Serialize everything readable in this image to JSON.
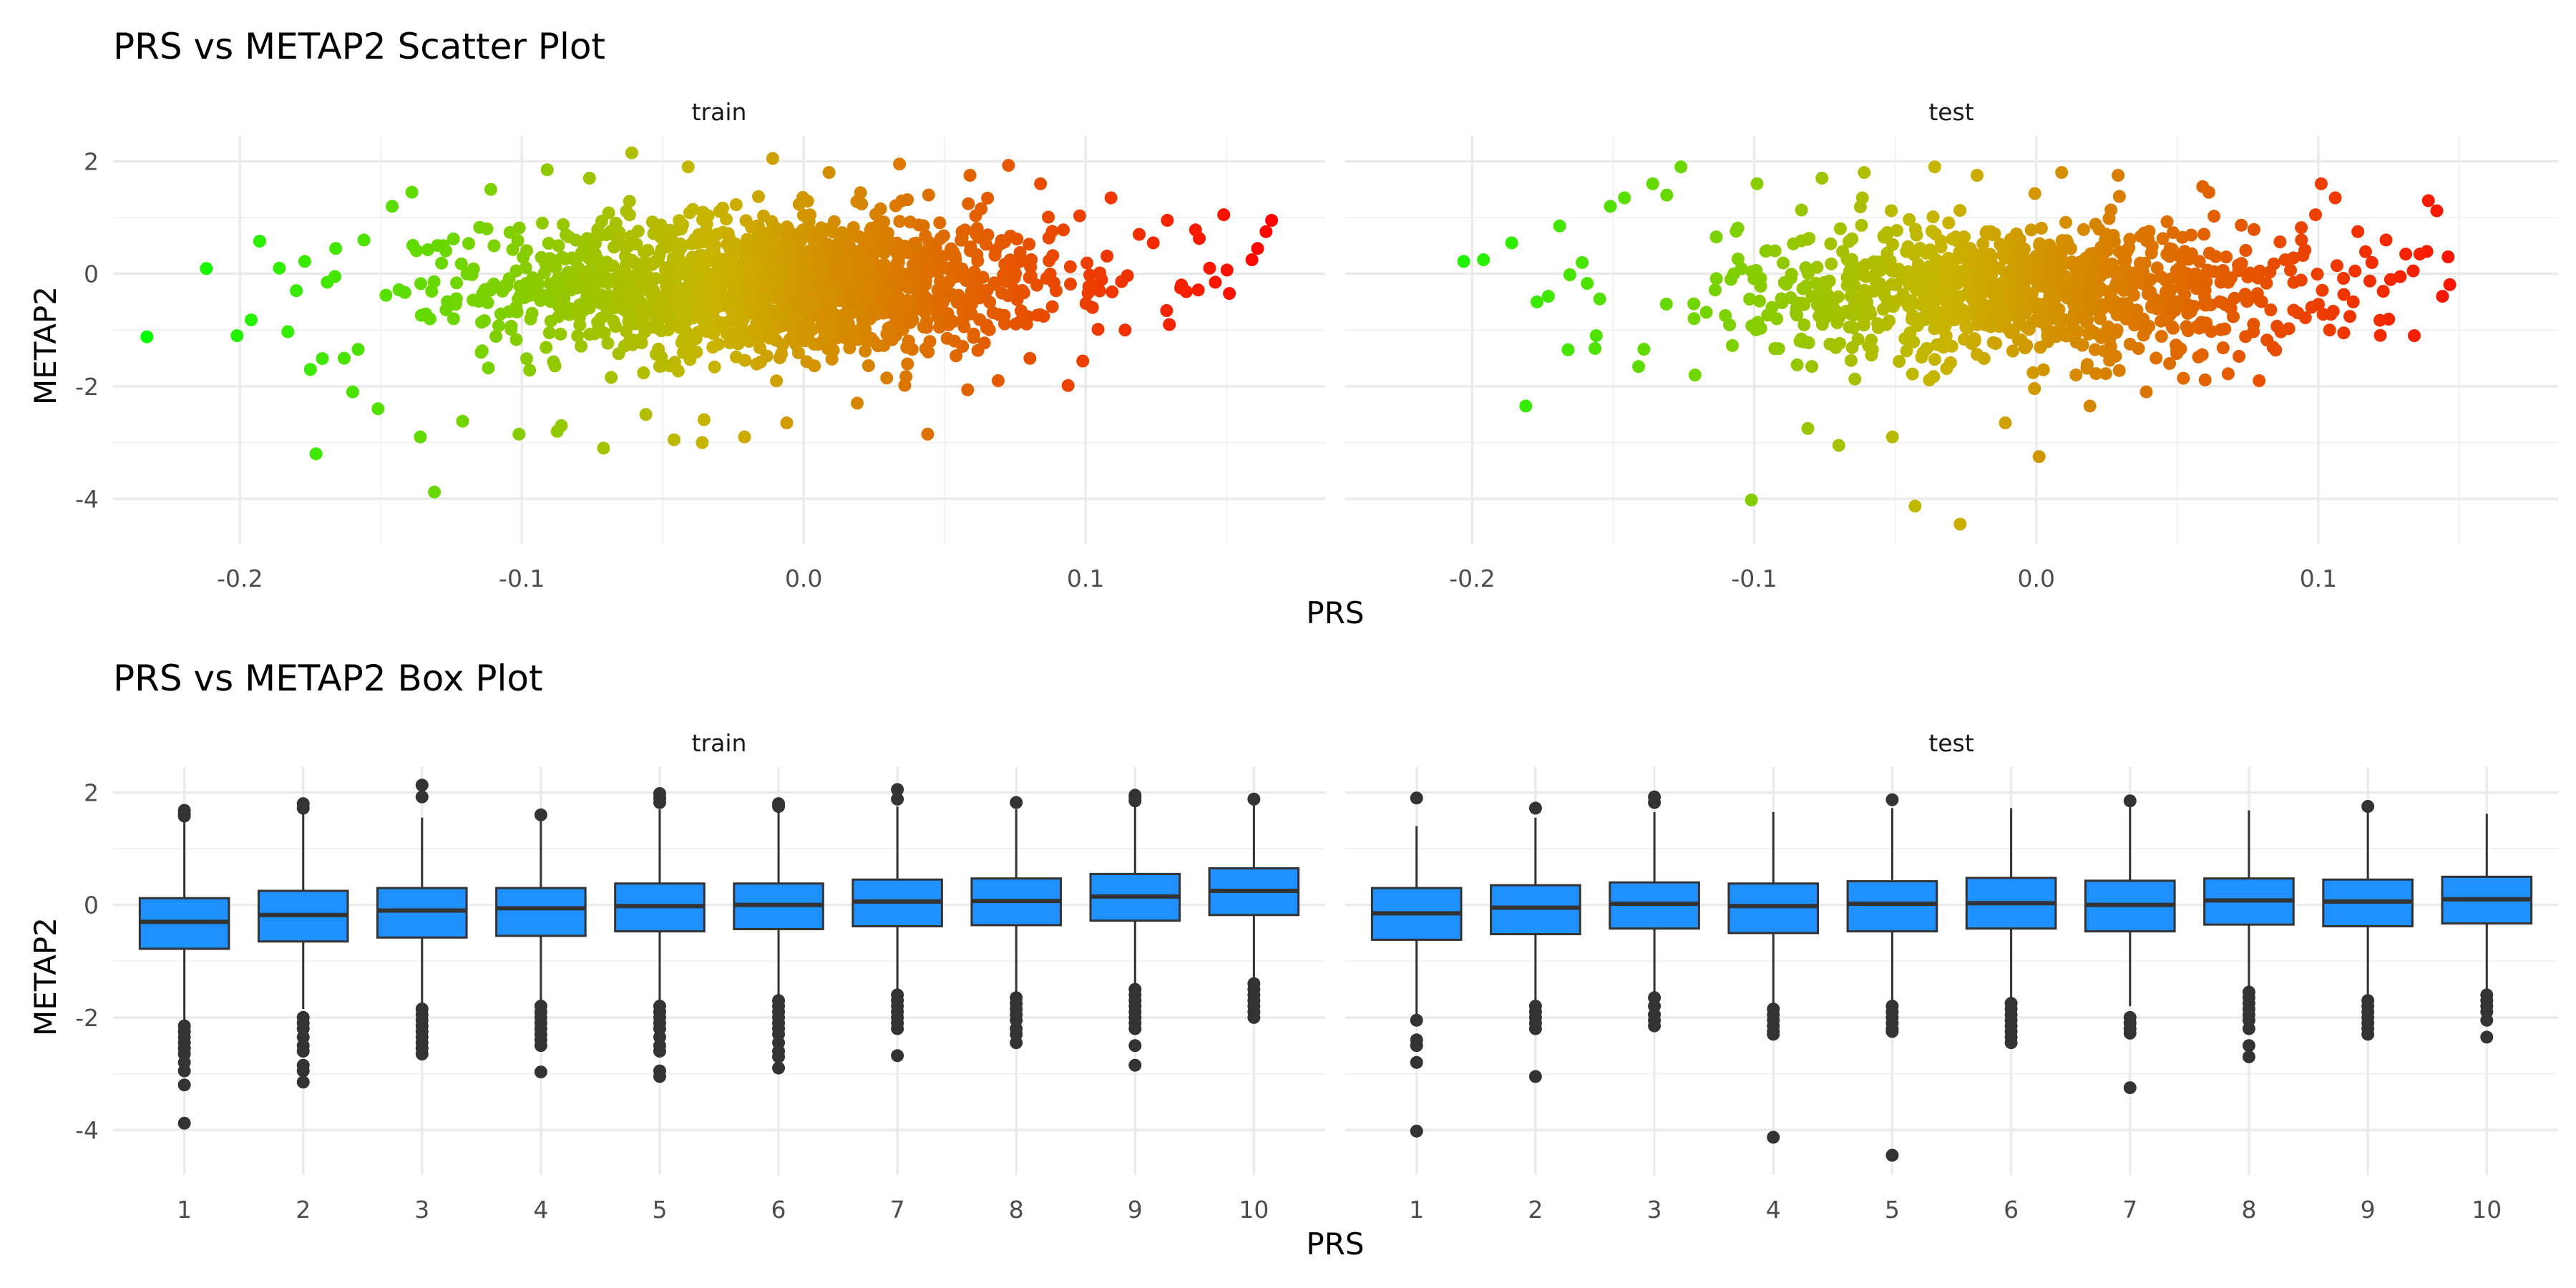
{
  "chart_data": [
    {
      "type": "scatter",
      "title": "PRS vs METAP2 Scatter Plot",
      "xlabel": "PRS",
      "ylabel": "METAP2",
      "xlim": [
        -0.245,
        0.185
      ],
      "ylim": [
        -4.8,
        2.45
      ],
      "x_ticks": [
        -0.2,
        -0.1,
        0.0,
        0.1
      ],
      "x_tick_labels": [
        "-0.2",
        "-0.1",
        "0.0",
        "0.1"
      ],
      "y_ticks": [
        2,
        0,
        -2,
        -4
      ],
      "y_tick_labels": [
        "2",
        "0",
        "-2",
        "-4"
      ],
      "grid": true,
      "legend": "none",
      "color_gradient": {
        "low": "#00ff00",
        "mid": "#c9b400",
        "high": "#ff0000",
        "low_value": -0.235,
        "high_value": 0.17
      },
      "facets": [
        {
          "label": "train",
          "cluster": {
            "n": 1600,
            "x_mean": -0.01,
            "x_sd": 0.05,
            "y_mean": -0.2,
            "y_sd": 0.62
          },
          "points": [
            {
              "x": -0.233,
              "y": -1.12
            },
            {
              "x": -0.201,
              "y": -1.1
            },
            {
              "x": -0.196,
              "y": -0.82
            },
            {
              "x": -0.193,
              "y": 0.58
            },
            {
              "x": -0.186,
              "y": 0.1
            },
            {
              "x": -0.183,
              "y": -1.03
            },
            {
              "x": -0.18,
              "y": -0.3
            },
            {
              "x": -0.177,
              "y": 0.22
            },
            {
              "x": -0.175,
              "y": -1.7
            },
            {
              "x": -0.173,
              "y": -3.2
            },
            {
              "x": -0.169,
              "y": -0.15
            },
            {
              "x": -0.166,
              "y": 0.45
            },
            {
              "x": -0.163,
              "y": -1.5
            },
            {
              "x": -0.16,
              "y": -2.1
            },
            {
              "x": -0.156,
              "y": 0.6
            },
            {
              "x": -0.151,
              "y": -2.4
            },
            {
              "x": -0.146,
              "y": 1.2
            },
            {
              "x": -0.139,
              "y": 1.45
            },
            {
              "x": -0.136,
              "y": -2.9
            },
            {
              "x": -0.131,
              "y": -3.88
            },
            {
              "x": -0.121,
              "y": -2.62
            },
            {
              "x": -0.111,
              "y": 1.5
            },
            {
              "x": -0.101,
              "y": -2.85
            },
            {
              "x": -0.091,
              "y": 1.85
            },
            {
              "x": -0.086,
              "y": -2.7
            },
            {
              "x": -0.076,
              "y": 1.7
            },
            {
              "x": -0.071,
              "y": -3.1
            },
            {
              "x": -0.061,
              "y": 2.15
            },
            {
              "x": -0.056,
              "y": -2.5
            },
            {
              "x": -0.046,
              "y": -2.95
            },
            {
              "x": -0.041,
              "y": 1.9
            },
            {
              "x": -0.036,
              "y": -3.0
            },
            {
              "x": -0.021,
              "y": -2.9
            },
            {
              "x": -0.011,
              "y": 2.05
            },
            {
              "x": -0.006,
              "y": -2.65
            },
            {
              "x": 0.009,
              "y": 1.8
            },
            {
              "x": 0.019,
              "y": -2.3
            },
            {
              "x": 0.034,
              "y": 1.95
            },
            {
              "x": 0.044,
              "y": -2.85
            },
            {
              "x": 0.059,
              "y": 1.75
            },
            {
              "x": 0.069,
              "y": -1.9
            },
            {
              "x": 0.084,
              "y": 1.6
            },
            {
              "x": 0.099,
              "y": -1.55
            },
            {
              "x": 0.109,
              "y": 1.35
            },
            {
              "x": 0.114,
              "y": -1.0
            },
            {
              "x": 0.119,
              "y": 0.7
            },
            {
              "x": 0.124,
              "y": 0.55
            },
            {
              "x": 0.129,
              "y": 0.95
            },
            {
              "x": 0.134,
              "y": -0.2
            },
            {
              "x": 0.139,
              "y": 0.78
            },
            {
              "x": 0.144,
              "y": 0.1
            },
            {
              "x": 0.146,
              "y": -0.15
            },
            {
              "x": 0.149,
              "y": 1.05
            },
            {
              "x": 0.151,
              "y": -0.35
            },
            {
              "x": 0.159,
              "y": 0.25
            },
            {
              "x": 0.161,
              "y": 0.45
            },
            {
              "x": 0.164,
              "y": 0.75
            },
            {
              "x": 0.166,
              "y": 0.95
            }
          ]
        },
        {
          "label": "test",
          "cluster": {
            "n": 1000,
            "x_mean": -0.005,
            "x_sd": 0.05,
            "y_mean": -0.3,
            "y_sd": 0.6
          },
          "points": [
            {
              "x": -0.203,
              "y": 0.22
            },
            {
              "x": -0.196,
              "y": 0.25
            },
            {
              "x": -0.186,
              "y": 0.55
            },
            {
              "x": -0.181,
              "y": -2.35
            },
            {
              "x": -0.177,
              "y": -0.5
            },
            {
              "x": -0.173,
              "y": -0.4
            },
            {
              "x": -0.169,
              "y": 0.85
            },
            {
              "x": -0.166,
              "y": -1.35
            },
            {
              "x": -0.161,
              "y": 0.2
            },
            {
              "x": -0.156,
              "y": -1.1
            },
            {
              "x": -0.151,
              "y": 1.2
            },
            {
              "x": -0.146,
              "y": 1.35
            },
            {
              "x": -0.141,
              "y": -1.65
            },
            {
              "x": -0.136,
              "y": 1.6
            },
            {
              "x": -0.131,
              "y": 1.4
            },
            {
              "x": -0.126,
              "y": 1.9
            },
            {
              "x": -0.121,
              "y": -1.8
            },
            {
              "x": -0.101,
              "y": -4.02
            },
            {
              "x": -0.099,
              "y": 1.6
            },
            {
              "x": -0.081,
              "y": -2.75
            },
            {
              "x": -0.076,
              "y": 1.7
            },
            {
              "x": -0.07,
              "y": -3.05
            },
            {
              "x": -0.061,
              "y": 1.8
            },
            {
              "x": -0.051,
              "y": -2.9
            },
            {
              "x": -0.043,
              "y": -4.13
            },
            {
              "x": -0.036,
              "y": 1.9
            },
            {
              "x": -0.027,
              "y": -4.45
            },
            {
              "x": -0.021,
              "y": 1.75
            },
            {
              "x": -0.011,
              "y": -2.65
            },
            {
              "x": 0.001,
              "y": -3.25
            },
            {
              "x": 0.009,
              "y": 1.8
            },
            {
              "x": 0.019,
              "y": -2.35
            },
            {
              "x": 0.029,
              "y": 1.75
            },
            {
              "x": 0.039,
              "y": -2.1
            },
            {
              "x": 0.059,
              "y": 1.55
            },
            {
              "x": 0.079,
              "y": -1.9
            },
            {
              "x": 0.094,
              "y": 0.6
            },
            {
              "x": 0.099,
              "y": 1.05
            },
            {
              "x": 0.101,
              "y": 1.6
            },
            {
              "x": 0.104,
              "y": -1.0
            },
            {
              "x": 0.106,
              "y": 1.35
            },
            {
              "x": 0.109,
              "y": -1.05
            },
            {
              "x": 0.114,
              "y": 0.75
            },
            {
              "x": 0.119,
              "y": 0.2
            },
            {
              "x": 0.124,
              "y": 0.6
            },
            {
              "x": 0.129,
              "y": -0.05
            },
            {
              "x": 0.131,
              "y": 0.35
            },
            {
              "x": 0.134,
              "y": -1.1
            },
            {
              "x": 0.136,
              "y": 0.35
            },
            {
              "x": 0.139,
              "y": 1.3
            },
            {
              "x": 0.142,
              "y": 1.12
            },
            {
              "x": 0.144,
              "y": -0.4
            },
            {
              "x": 0.146,
              "y": 0.3
            }
          ]
        }
      ]
    },
    {
      "type": "box",
      "title": "PRS vs METAP2 Box Plot",
      "xlabel": "PRS",
      "ylabel": "METAP2",
      "categories": [
        "1",
        "2",
        "3",
        "4",
        "5",
        "6",
        "7",
        "8",
        "9",
        "10"
      ],
      "ylim": [
        -4.8,
        2.45
      ],
      "y_ticks": [
        2,
        0,
        -2,
        -4
      ],
      "y_tick_labels": [
        "2",
        "0",
        "-2",
        "-4"
      ],
      "grid": true,
      "box_fill": "#1e90ff",
      "box_stroke": "#333333",
      "facets": [
        {
          "label": "train",
          "boxes": [
            {
              "q1": -0.78,
              "median": -0.3,
              "q3": 0.12,
              "whisker_low": -2.05,
              "whisker_high": 1.55,
              "outliers": [
                1.68,
                1.62,
                1.58,
                -2.15,
                -2.25,
                -2.35,
                -2.45,
                -2.55,
                -2.65,
                -2.8,
                -2.95,
                -3.2,
                -3.88
              ]
            },
            {
              "q1": -0.65,
              "median": -0.18,
              "q3": 0.25,
              "whisker_low": -1.85,
              "whisker_high": 1.65,
              "outliers": [
                1.8,
                1.72,
                -2.0,
                -2.1,
                -2.2,
                -2.35,
                -2.5,
                -2.6,
                -2.85,
                -2.95,
                -3.15
              ]
            },
            {
              "q1": -0.58,
              "median": -0.1,
              "q3": 0.3,
              "whisker_low": -1.75,
              "whisker_high": 1.55,
              "outliers": [
                2.13,
                1.92,
                -1.85,
                -1.95,
                -2.05,
                -2.15,
                -2.25,
                -2.35,
                -2.45,
                -2.55,
                -2.65
              ]
            },
            {
              "q1": -0.55,
              "median": -0.06,
              "q3": 0.3,
              "whisker_low": -1.75,
              "whisker_high": 1.5,
              "outliers": [
                1.6,
                -1.8,
                -1.9,
                -2.0,
                -2.1,
                -2.2,
                -2.3,
                -2.4,
                -2.5,
                -2.97
              ]
            },
            {
              "q1": -0.47,
              "median": -0.02,
              "q3": 0.38,
              "whisker_low": -1.7,
              "whisker_high": 1.7,
              "outliers": [
                1.98,
                1.9,
                1.82,
                -1.8,
                -1.9,
                -2.0,
                -2.1,
                -2.2,
                -2.35,
                -2.5,
                -2.6,
                -2.95,
                -3.05
              ]
            },
            {
              "q1": -0.43,
              "median": 0.0,
              "q3": 0.38,
              "whisker_low": -1.6,
              "whisker_high": 1.65,
              "outliers": [
                1.8,
                1.75,
                -1.7,
                -1.8,
                -1.9,
                -2.0,
                -2.1,
                -2.2,
                -2.3,
                -2.45,
                -2.6,
                -2.7,
                -2.9
              ]
            },
            {
              "q1": -0.38,
              "median": 0.06,
              "q3": 0.45,
              "whisker_low": -1.55,
              "whisker_high": 1.75,
              "outliers": [
                2.05,
                1.88,
                -1.6,
                -1.7,
                -1.8,
                -1.9,
                -2.0,
                -2.1,
                -2.2,
                -2.68
              ]
            },
            {
              "q1": -0.36,
              "median": 0.07,
              "q3": 0.47,
              "whisker_low": -1.55,
              "whisker_high": 1.7,
              "outliers": [
                1.82,
                -1.65,
                -1.75,
                -1.85,
                -1.95,
                -2.05,
                -2.2,
                -2.3,
                -2.45
              ]
            },
            {
              "q1": -0.28,
              "median": 0.15,
              "q3": 0.55,
              "whisker_low": -1.4,
              "whisker_high": 1.8,
              "outliers": [
                1.95,
                1.9,
                1.85,
                -1.5,
                -1.6,
                -1.7,
                -1.8,
                -1.9,
                -2.0,
                -2.1,
                -2.2,
                -2.5,
                -2.85
              ]
            },
            {
              "q1": -0.18,
              "median": 0.25,
              "q3": 0.65,
              "whisker_low": -1.3,
              "whisker_high": 1.85,
              "outliers": [
                1.88,
                -1.4,
                -1.5,
                -1.6,
                -1.7,
                -1.8,
                -1.9,
                -2.0
              ]
            }
          ]
        },
        {
          "label": "test",
          "boxes": [
            {
              "q1": -0.62,
              "median": -0.15,
              "q3": 0.3,
              "whisker_low": -1.95,
              "whisker_high": 1.4,
              "outliers": [
                1.9,
                -2.05,
                -2.4,
                -2.5,
                -2.8,
                -4.02
              ]
            },
            {
              "q1": -0.52,
              "median": -0.05,
              "q3": 0.35,
              "whisker_low": -1.7,
              "whisker_high": 1.55,
              "outliers": [
                1.72,
                -1.8,
                -1.9,
                -2.0,
                -2.1,
                -2.2,
                -3.05
              ]
            },
            {
              "q1": -0.42,
              "median": 0.02,
              "q3": 0.4,
              "whisker_low": -1.55,
              "whisker_high": 1.65,
              "outliers": [
                1.92,
                1.82,
                -1.65,
                -1.8,
                -1.95,
                -2.05,
                -2.15
              ]
            },
            {
              "q1": -0.5,
              "median": -0.02,
              "q3": 0.38,
              "whisker_low": -1.75,
              "whisker_high": 1.65,
              "outliers": [
                -1.85,
                -1.95,
                -2.05,
                -2.15,
                -2.25,
                -2.3,
                -4.13
              ]
            },
            {
              "q1": -0.47,
              "median": 0.02,
              "q3": 0.42,
              "whisker_low": -1.7,
              "whisker_high": 1.72,
              "outliers": [
                1.87,
                -1.8,
                -1.9,
                -2.0,
                -2.1,
                -2.2,
                -2.25,
                -4.45
              ]
            },
            {
              "q1": -0.42,
              "median": 0.03,
              "q3": 0.48,
              "whisker_low": -1.65,
              "whisker_high": 1.72,
              "outliers": [
                -1.75,
                -1.85,
                -1.95,
                -2.05,
                -2.15,
                -2.25,
                -2.35,
                -2.45
              ]
            },
            {
              "q1": -0.47,
              "median": 0.0,
              "q3": 0.43,
              "whisker_low": -1.8,
              "whisker_high": 1.75,
              "outliers": [
                1.85,
                -2.0,
                -2.1,
                -2.2,
                -2.28,
                -3.25
              ]
            },
            {
              "q1": -0.35,
              "median": 0.08,
              "q3": 0.47,
              "whisker_low": -1.5,
              "whisker_high": 1.68,
              "outliers": [
                -1.55,
                -1.65,
                -1.75,
                -1.85,
                -1.95,
                -2.05,
                -2.2,
                -2.5,
                -2.7
              ]
            },
            {
              "q1": -0.38,
              "median": 0.06,
              "q3": 0.45,
              "whisker_low": -1.6,
              "whisker_high": 1.65,
              "outliers": [
                1.75,
                -1.7,
                -1.8,
                -1.9,
                -2.0,
                -2.1,
                -2.2,
                -2.3
              ]
            },
            {
              "q1": -0.33,
              "median": 0.1,
              "q3": 0.5,
              "whisker_low": -1.5,
              "whisker_high": 1.62,
              "outliers": [
                -1.6,
                -1.7,
                -1.8,
                -1.9,
                -2.05,
                -2.35
              ]
            }
          ]
        }
      ]
    }
  ]
}
